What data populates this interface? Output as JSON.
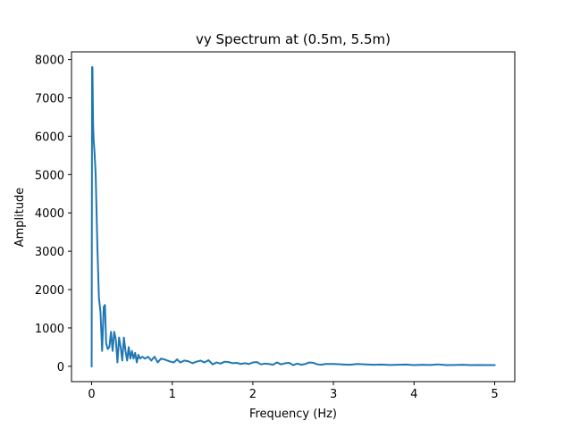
{
  "chart_data": {
    "type": "line",
    "title": "vy Spectrum at (0.5m, 5.5m)",
    "xlabel": "Frequency (Hz)",
    "ylabel": "Amplitude",
    "xlim": [
      -0.25,
      5.25
    ],
    "ylim": [
      -400,
      8200
    ],
    "xticks": [
      0,
      1,
      2,
      3,
      4,
      5
    ],
    "xtick_labels": [
      "0",
      "1",
      "2",
      "3",
      "4",
      "5"
    ],
    "yticks": [
      0,
      1000,
      2000,
      3000,
      4000,
      5000,
      6000,
      7000,
      8000
    ],
    "ytick_labels": [
      "0",
      "1000",
      "2000",
      "3000",
      "4000",
      "5000",
      "6000",
      "7000",
      "8000"
    ],
    "grid": false,
    "series": [
      {
        "name": "vy",
        "color": "#1f77b4",
        "x": [
          0.0,
          0.005,
          0.01,
          0.018,
          0.025,
          0.035,
          0.05,
          0.07,
          0.09,
          0.11,
          0.13,
          0.15,
          0.165,
          0.18,
          0.2,
          0.22,
          0.24,
          0.26,
          0.28,
          0.3,
          0.32,
          0.34,
          0.36,
          0.38,
          0.4,
          0.42,
          0.44,
          0.46,
          0.48,
          0.5,
          0.52,
          0.54,
          0.56,
          0.58,
          0.6,
          0.63,
          0.66,
          0.7,
          0.74,
          0.78,
          0.82,
          0.86,
          0.9,
          0.94,
          0.98,
          1.02,
          1.06,
          1.1,
          1.15,
          1.2,
          1.25,
          1.3,
          1.35,
          1.4,
          1.45,
          1.5,
          1.55,
          1.6,
          1.65,
          1.7,
          1.75,
          1.8,
          1.85,
          1.9,
          1.95,
          2.0,
          2.05,
          2.1,
          2.15,
          2.2,
          2.25,
          2.3,
          2.35,
          2.4,
          2.45,
          2.5,
          2.55,
          2.6,
          2.65,
          2.7,
          2.75,
          2.8,
          2.85,
          2.9,
          3.0,
          3.1,
          3.2,
          3.3,
          3.4,
          3.5,
          3.6,
          3.7,
          3.8,
          3.9,
          4.0,
          4.1,
          4.2,
          4.3,
          4.4,
          4.5,
          4.6,
          4.7,
          4.8,
          4.9,
          5.0
        ],
        "y": [
          0,
          7800,
          7800,
          6300,
          5900,
          5600,
          5000,
          3200,
          1800,
          1400,
          400,
          1550,
          1600,
          600,
          450,
          500,
          900,
          400,
          900,
          700,
          100,
          750,
          500,
          150,
          750,
          400,
          150,
          500,
          200,
          400,
          200,
          350,
          100,
          300,
          200,
          250,
          200,
          250,
          150,
          250,
          100,
          200,
          180,
          150,
          120,
          100,
          180,
          100,
          150,
          130,
          80,
          120,
          150,
          100,
          160,
          50,
          100,
          70,
          120,
          110,
          80,
          90,
          60,
          80,
          60,
          100,
          110,
          50,
          70,
          60,
          40,
          100,
          50,
          80,
          90,
          30,
          70,
          40,
          60,
          100,
          90,
          50,
          40,
          60,
          60,
          50,
          40,
          60,
          50,
          40,
          45,
          35,
          40,
          45,
          30,
          40,
          35,
          50,
          30,
          35,
          40,
          30,
          35,
          30,
          30
        ]
      }
    ]
  }
}
